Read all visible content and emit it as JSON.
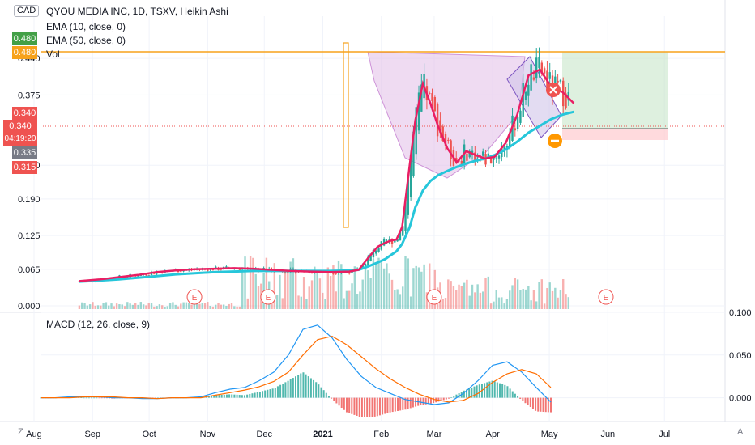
{
  "header": {
    "currency": "CAD",
    "title": "QYOU MEDIA INC, 1D, TSXV, Heikin Ashi",
    "ema10_label": "EMA (10, close, 0)",
    "ema50_label": "EMA (50, close, 0)",
    "vol_label": "Vol",
    "macd_label": "MACD (12, 26, close, 9)"
  },
  "price_tags": {
    "ema10": "0.480",
    "ema50": "0.480",
    "high": "0.340",
    "last": "0.340",
    "countdown": "04:19:20",
    "mid": "0.335",
    "low": "0.315"
  },
  "bottom_corner": {
    "left": "Z",
    "right": "A"
  },
  "earnings_marker": "E",
  "colors": {
    "up": "#26a69a",
    "down": "#ef5350",
    "ema10": "#e91e63",
    "ema50": "#26c6da",
    "resistance": "#f7a21b",
    "pattern_fill": "#e1bee7",
    "macd_line": "#2196f3",
    "signal_line": "#ff6d00",
    "target_fill": "#c8e6c9",
    "stop_fill": "#ffcdd2"
  },
  "chart_data": [
    {
      "type": "candlestick",
      "title": "QYOU MEDIA INC, 1D, TSXV, Heikin Ashi",
      "x_ticks": [
        "Sep",
        "Oct",
        "Nov",
        "Dec",
        "2021",
        "Feb",
        "Mar",
        "Apr",
        "May",
        "Jun",
        "Jul",
        "Aug"
      ],
      "y_ticks": [
        "0.000",
        "0.065",
        "0.125",
        "0.190",
        "0.250",
        "0.375",
        "0.440"
      ],
      "ylim": [
        0.0,
        0.515
      ],
      "resistance_level": 0.48,
      "series": [
        {
          "name": "EMA (10, close, 0)",
          "values": [
            0.044,
            0.047,
            0.051,
            0.055,
            0.06,
            0.063,
            0.065,
            0.066,
            0.067,
            0.066,
            0.064,
            0.062,
            0.061,
            0.06,
            0.061,
            0.064,
            0.085,
            0.105,
            0.112,
            0.116,
            0.118,
            0.14,
            0.25,
            0.33,
            0.395,
            0.36,
            0.32,
            0.28,
            0.255,
            0.275,
            0.268,
            0.262,
            0.265,
            0.29,
            0.34,
            0.41,
            0.42,
            0.39,
            0.38,
            0.36
          ]
        },
        {
          "name": "EMA (50, close, 0)",
          "values": [
            0.043,
            0.045,
            0.047,
            0.05,
            0.053,
            0.056,
            0.058,
            0.06,
            0.061,
            0.062,
            0.062,
            0.062,
            0.062,
            0.062,
            0.063,
            0.064,
            0.07,
            0.077,
            0.083,
            0.09,
            0.097,
            0.11,
            0.14,
            0.175,
            0.205,
            0.222,
            0.232,
            0.24,
            0.247,
            0.253,
            0.258,
            0.262,
            0.268,
            0.278,
            0.292,
            0.308,
            0.32,
            0.332,
            0.34,
            0.345
          ]
        }
      ],
      "ema_dates": [
        "Aug 25",
        "Sep 5",
        "Sep 15",
        "Sep 25",
        "Oct 5",
        "Oct 15",
        "Oct 25",
        "Nov 5",
        "Nov 15",
        "Nov 25",
        "Dec 5",
        "Dec 15",
        "Dec 25",
        "Jan 5",
        "Jan 15",
        "Jan 20",
        "Jan 25",
        "Jan 30",
        "Feb 3",
        "Feb 6",
        "Feb 9",
        "Feb 12",
        "Feb 16",
        "Feb 19",
        "Feb 23",
        "Feb 27",
        "Mar 3",
        "Mar 8",
        "Mar 13",
        "Mar 18",
        "Mar 23",
        "Mar 28",
        "Apr 2",
        "Apr 8",
        "Apr 14",
        "Apr 20",
        "Apr 26",
        "May 2",
        "May 8",
        "May 14"
      ],
      "earnings_dates": [
        "Oct 25",
        "Dec 3",
        "Mar 1",
        "May 31"
      ]
    },
    {
      "type": "bar",
      "title": "MACD (12, 26, close, 9)",
      "y_ticks": [
        "0.000",
        "0.050",
        "0.100"
      ],
      "ylim": [
        -0.025,
        0.1
      ],
      "series": [
        {
          "name": "MACD",
          "values": [
            0.0,
            0.0,
            0.001,
            0.001,
            0.001,
            0.0,
            0.0,
            -0.001,
            -0.001,
            0.0,
            0.0,
            0.001,
            0.006,
            0.01,
            0.012,
            0.02,
            0.03,
            0.05,
            0.08,
            0.085,
            0.07,
            0.045,
            0.025,
            0.012,
            0.005,
            -0.002,
            -0.005,
            -0.008,
            -0.006,
            0.005,
            0.02,
            0.038,
            0.042,
            0.03,
            0.012,
            -0.005
          ]
        },
        {
          "name": "Signal",
          "values": [
            0.0,
            0.0,
            0.0,
            0.001,
            0.001,
            0.001,
            0.0,
            0.0,
            -0.001,
            0.0,
            0.0,
            0.0,
            0.003,
            0.006,
            0.009,
            0.013,
            0.019,
            0.03,
            0.05,
            0.068,
            0.072,
            0.062,
            0.048,
            0.034,
            0.022,
            0.012,
            0.004,
            -0.002,
            -0.005,
            -0.003,
            0.005,
            0.018,
            0.028,
            0.033,
            0.028,
            0.012
          ]
        }
      ]
    }
  ]
}
